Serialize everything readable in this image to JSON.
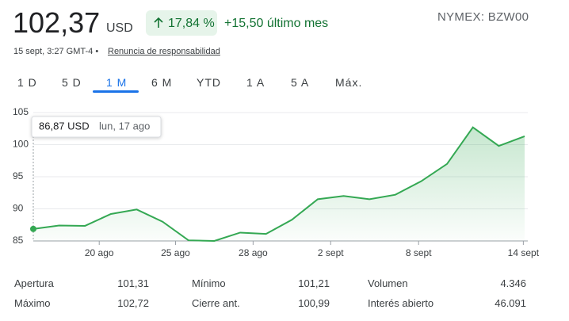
{
  "header": {
    "price": "102,37",
    "currency": "USD",
    "change_pct": "17,84 %",
    "change_abs": "+15,50 último mes",
    "exchange": "NYMEX: BZW00",
    "timestamp": "15 sept, 3:27 GMT-4 •",
    "disclaimer": "Renuncia de responsabilidad"
  },
  "tabs": {
    "items": [
      "1 D",
      "5 D",
      "1 M",
      "6 M",
      "YTD",
      "1 A",
      "5 A",
      "Máx."
    ],
    "active": 2
  },
  "chart_data": {
    "type": "line",
    "color": "#34a853",
    "x": [
      0,
      1,
      2,
      3,
      4,
      5,
      6,
      7,
      8,
      9,
      10,
      11,
      12,
      13,
      14,
      15,
      16,
      17,
      18,
      19
    ],
    "values": [
      86.87,
      87.4,
      87.35,
      89.2,
      89.9,
      88.0,
      85.1,
      85.0,
      86.3,
      86.1,
      88.3,
      91.5,
      92.0,
      91.5,
      92.2,
      94.3,
      97.0,
      102.7,
      99.8,
      101.3
    ],
    "xlim": [
      0,
      19
    ],
    "xticks": [
      {
        "value": 2.55,
        "label": "20 ago"
      },
      {
        "value": 5.5,
        "label": "25 ago"
      },
      {
        "value": 8.5,
        "label": "28 ago"
      },
      {
        "value": 11.5,
        "label": "2 sept"
      },
      {
        "value": 14.9,
        "label": "8 sept"
      },
      {
        "value": 18.95,
        "label": "14 sept"
      }
    ],
    "ylim": [
      85,
      105
    ],
    "yticks": [
      85,
      90,
      95,
      100,
      105
    ],
    "grid": true,
    "tooltip": {
      "value": "86,87 USD",
      "date": "lun, 17 ago"
    }
  },
  "stats": {
    "rows": [
      [
        [
          "Apertura",
          "101,31"
        ],
        [
          "Mínimo",
          "101,21"
        ],
        [
          "Volumen",
          "4.346"
        ]
      ],
      [
        [
          "Máximo",
          "102,72"
        ],
        [
          "Cierre ant.",
          "100,99"
        ],
        [
          "Interés abierto",
          "46.091"
        ]
      ]
    ]
  }
}
